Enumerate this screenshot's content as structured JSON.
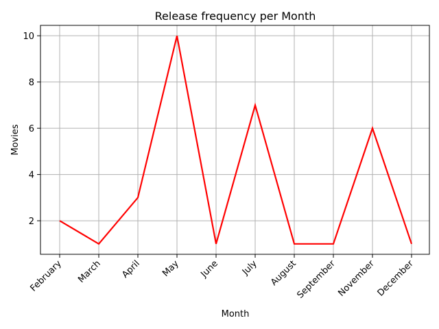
{
  "chart_data": {
    "type": "line",
    "title": "Release frequency per Month",
    "xlabel": "Month",
    "ylabel": "Movies",
    "categories": [
      "February",
      "March",
      "April",
      "May",
      "June",
      "July",
      "August",
      "September",
      "November",
      "December"
    ],
    "series": [
      {
        "values": [
          2,
          1,
          3,
          10,
          1,
          7,
          1,
          1,
          6,
          1
        ],
        "color": "#ff0000"
      }
    ],
    "yticks": [
      2,
      4,
      6,
      8,
      10
    ],
    "ylim": [
      0.55,
      10.45
    ],
    "grid": true,
    "legend": false
  }
}
